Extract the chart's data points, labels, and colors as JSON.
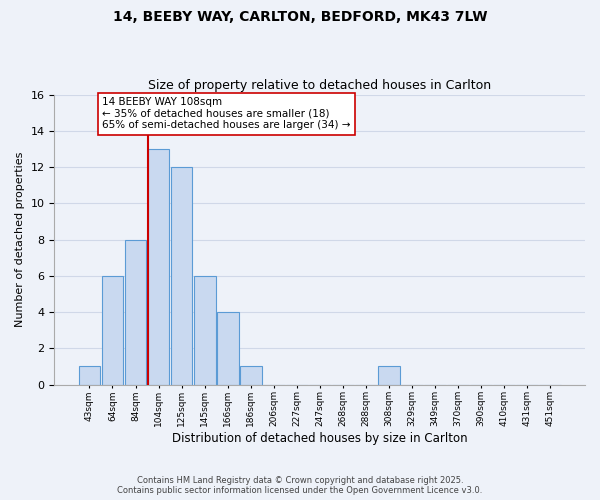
{
  "title": "14, BEEBY WAY, CARLTON, BEDFORD, MK43 7LW",
  "subtitle": "Size of property relative to detached houses in Carlton",
  "xlabel": "Distribution of detached houses by size in Carlton",
  "ylabel": "Number of detached properties",
  "bin_labels": [
    "43sqm",
    "64sqm",
    "84sqm",
    "104sqm",
    "125sqm",
    "145sqm",
    "166sqm",
    "186sqm",
    "206sqm",
    "227sqm",
    "247sqm",
    "268sqm",
    "288sqm",
    "308sqm",
    "329sqm",
    "349sqm",
    "370sqm",
    "390sqm",
    "410sqm",
    "431sqm",
    "451sqm"
  ],
  "bar_heights": [
    1,
    6,
    8,
    13,
    12,
    6,
    4,
    1,
    0,
    0,
    0,
    0,
    0,
    1,
    0,
    0,
    0,
    0,
    0,
    0,
    0
  ],
  "bar_color": "#c9d9f0",
  "bar_edge_color": "#5b9bd5",
  "property_line_bin": 3,
  "property_line_color": "#cc0000",
  "ylim": [
    0,
    16
  ],
  "yticks": [
    0,
    2,
    4,
    6,
    8,
    10,
    12,
    14,
    16
  ],
  "annotation_title": "14 BEEBY WAY 108sqm",
  "annotation_line1": "← 35% of detached houses are smaller (18)",
  "annotation_line2": "65% of semi-detached houses are larger (34) →",
  "annotation_box_color": "#ffffff",
  "annotation_box_edge": "#cc0000",
  "grid_color": "#d0d8e8",
  "background_color": "#eef2f9",
  "footer_line1": "Contains HM Land Registry data © Crown copyright and database right 2025.",
  "footer_line2": "Contains public sector information licensed under the Open Government Licence v3.0."
}
